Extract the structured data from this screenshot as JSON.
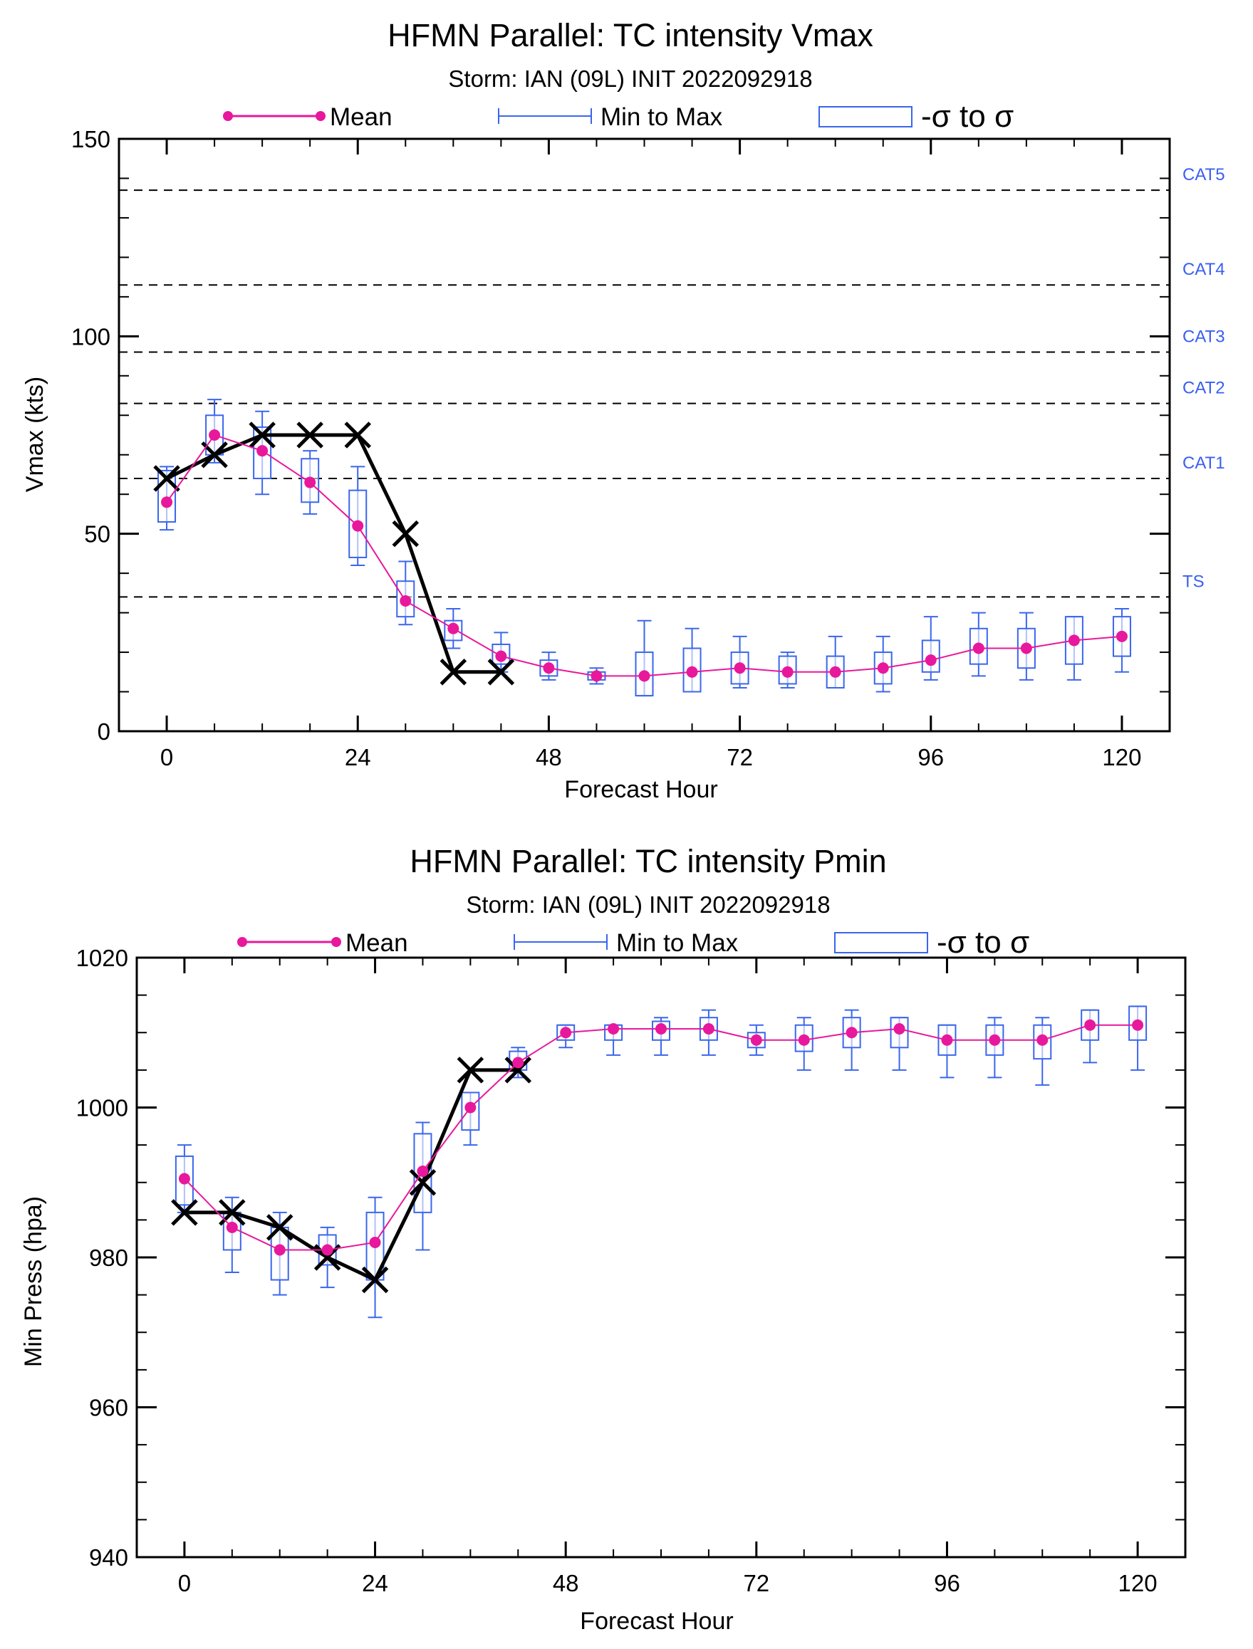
{
  "colors": {
    "mean": "#e8189c",
    "spread": "#3a66ee",
    "observed": "#000000",
    "category_label": "#3a5ff0"
  },
  "legend": {
    "mean": "Mean",
    "minmax": "Min to Max",
    "sigma": "-σ to σ"
  },
  "chart_data": [
    {
      "type": "line",
      "title": "HFMN Parallel: TC intensity Vmax",
      "subtitle": "Storm: IAN (09L) INIT 2022092918",
      "xlabel": "Forecast Hour",
      "ylabel": "Vmax (kts)",
      "xlim": [
        -6,
        126
      ],
      "ylim": [
        0,
        150
      ],
      "xticks": [
        0,
        24,
        48,
        72,
        96,
        120
      ],
      "yticks": [
        0,
        50,
        100,
        150
      ],
      "grid": false,
      "legend_position": "top",
      "category_lines": [
        {
          "label": "TS",
          "value": 34
        },
        {
          "label": "CAT1",
          "value": 64
        },
        {
          "label": "CAT2",
          "value": 83
        },
        {
          "label": "CAT3",
          "value": 96
        },
        {
          "label": "CAT4",
          "value": 113
        },
        {
          "label": "CAT5",
          "value": 137
        }
      ],
      "ensemble": {
        "x": [
          0,
          6,
          12,
          18,
          24,
          30,
          36,
          42,
          48,
          54,
          60,
          66,
          72,
          78,
          84,
          90,
          96,
          102,
          108,
          114,
          120
        ],
        "mean": [
          58,
          75,
          71,
          63,
          52,
          33,
          26,
          19,
          16,
          14,
          14,
          15,
          16,
          15,
          15,
          16,
          18,
          21,
          21,
          23,
          24
        ],
        "min": [
          51,
          68,
          60,
          55,
          42,
          27,
          21,
          15,
          13,
          12,
          9,
          10,
          11,
          11,
          11,
          10,
          13,
          14,
          13,
          13,
          15
        ],
        "max": [
          67,
          84,
          81,
          71,
          67,
          43,
          31,
          25,
          20,
          16,
          28,
          26,
          24,
          20,
          24,
          24,
          29,
          30,
          30,
          29,
          31
        ],
        "sigma_low": [
          53,
          70,
          64,
          58,
          44,
          29,
          23,
          17,
          14,
          13,
          9,
          10,
          12,
          12,
          11,
          12,
          15,
          17,
          16,
          17,
          19
        ],
        "sigma_high": [
          66,
          80,
          77,
          69,
          61,
          38,
          28,
          22,
          18,
          15,
          20,
          21,
          20,
          19,
          19,
          20,
          23,
          26,
          26,
          29,
          29
        ]
      },
      "observed": {
        "x": [
          0,
          6,
          12,
          18,
          24,
          30,
          36,
          42
        ],
        "values": [
          64,
          70,
          75,
          75,
          75,
          50,
          15,
          15
        ]
      }
    },
    {
      "type": "line",
      "title": "HFMN Parallel: TC intensity Pmin",
      "subtitle": "Storm: IAN (09L) INIT 2022092918",
      "xlabel": "Forecast Hour",
      "ylabel": "Min Press (hpa)",
      "xlim": [
        -6,
        126
      ],
      "ylim": [
        940,
        1020
      ],
      "xticks": [
        0,
        24,
        48,
        72,
        96,
        120
      ],
      "yticks": [
        940,
        960,
        980,
        1000,
        1020
      ],
      "grid": false,
      "legend_position": "top",
      "ensemble": {
        "x": [
          0,
          6,
          12,
          18,
          24,
          30,
          36,
          42,
          48,
          54,
          60,
          66,
          72,
          78,
          84,
          90,
          96,
          102,
          108,
          114,
          120
        ],
        "mean": [
          990.5,
          984,
          981,
          981,
          982,
          991.5,
          1000,
          1006,
          1010,
          1010.5,
          1010.5,
          1010.5,
          1009,
          1009,
          1010,
          1010.5,
          1009,
          1009,
          1009,
          1011,
          1011
        ],
        "min": [
          986,
          978,
          975,
          976,
          972,
          981,
          995,
          1004,
          1008,
          1007,
          1007,
          1007,
          1007,
          1005,
          1005,
          1005,
          1004,
          1004,
          1003,
          1006,
          1005
        ],
        "max": [
          995,
          988,
          986,
          984,
          988,
          998,
          1002,
          1008,
          1011,
          1011,
          1012,
          1013,
          1011,
          1012,
          1013,
          1012,
          1011,
          1012,
          1012,
          1013,
          1013.5
        ],
        "sigma_low": [
          987,
          981,
          977,
          979,
          977,
          986,
          997,
          1005,
          1009,
          1009,
          1009,
          1009,
          1008,
          1007.5,
          1008,
          1008,
          1007,
          1007,
          1006.5,
          1009,
          1009
        ],
        "sigma_high": [
          993.5,
          986,
          984,
          983,
          986,
          996.5,
          1002,
          1007.5,
          1011,
          1011,
          1011.5,
          1012,
          1010,
          1011,
          1012,
          1012,
          1011,
          1011,
          1011,
          1013,
          1013.5
        ]
      },
      "observed": {
        "x": [
          0,
          6,
          12,
          18,
          24,
          30,
          36,
          42
        ],
        "values": [
          986,
          986,
          984,
          980,
          977,
          990,
          1005,
          1005
        ]
      }
    }
  ]
}
